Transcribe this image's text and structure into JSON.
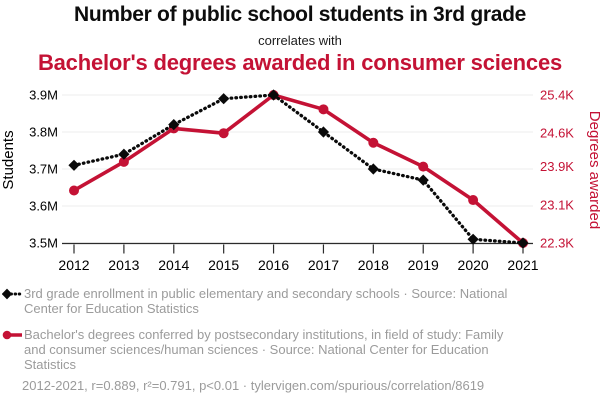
{
  "page": {
    "background": "#ffffff"
  },
  "header": {
    "title": "Number of public school students in 3rd grade",
    "connector": "correlates with",
    "subtitle": "Bachelor's degrees awarded in consumer sciences"
  },
  "colors": {
    "accent_red": "#c41235",
    "series_black": "#0a0a0a",
    "legend_gray": "#9b9b9b",
    "gridline": "#ececec",
    "axis": "#2b2b2b",
    "title_black": "#0d0d0d"
  },
  "chart_data": {
    "type": "line",
    "x": [
      2012,
      2013,
      2014,
      2015,
      2016,
      2017,
      2018,
      2019,
      2020,
      2021
    ],
    "x_tick_labels": [
      "2012",
      "2013",
      "2014",
      "2015",
      "2016",
      "2017",
      "2018",
      "2019",
      "2020",
      "2021"
    ],
    "series": [
      {
        "name": "3rd grade enrollment in public elementary and secondary schools",
        "axis": "left",
        "marker": "diamond",
        "line_style": "dotted",
        "color": "#0a0a0a",
        "unit": "millions of students",
        "values": [
          3.71,
          3.74,
          3.82,
          3.89,
          3.9,
          3.8,
          3.7,
          3.67,
          3.51,
          3.5
        ]
      },
      {
        "name": "Bachelor's degrees conferred by postsecondary institutions, in field of study: Family and consumer sciences/human sciences",
        "axis": "right",
        "marker": "circle",
        "line_style": "solid",
        "color": "#c41235",
        "unit": "thousands of degrees",
        "values": [
          23.4,
          24.0,
          24.7,
          24.6,
          25.4,
          25.1,
          24.4,
          23.9,
          23.2,
          22.3
        ]
      }
    ],
    "left_axis": {
      "label": "Students",
      "tick_labels": [
        "3.9M",
        "3.8M",
        "3.7M",
        "3.6M",
        "3.5M"
      ],
      "tick_values": [
        3.9,
        3.8,
        3.7,
        3.6,
        3.5
      ],
      "range": [
        3.5,
        3.9
      ]
    },
    "right_axis": {
      "label": "Degrees awarded",
      "tick_labels": [
        "25.4K",
        "24.6K",
        "23.9K",
        "23.1K",
        "22.3K"
      ],
      "tick_values": [
        25.4,
        24.6,
        23.9,
        23.1,
        22.3
      ],
      "range": [
        22.3,
        25.4
      ]
    },
    "grid": true,
    "legend_position": "bottom"
  },
  "legend": [
    {
      "text": "3rd grade enrollment in public elementary and secondary schools · Source: National Center for Education Statistics"
    },
    {
      "text": "Bachelor's degrees conferred by postsecondary institutions, in field of study: Family and consumer sciences/human sciences · Source: National Center for Education Statistics"
    }
  ],
  "footer": {
    "stats": "2012-2021, r=0.889, r²=0.791, p<0.01 · tylervigen.com/spurious/correlation/8619"
  }
}
